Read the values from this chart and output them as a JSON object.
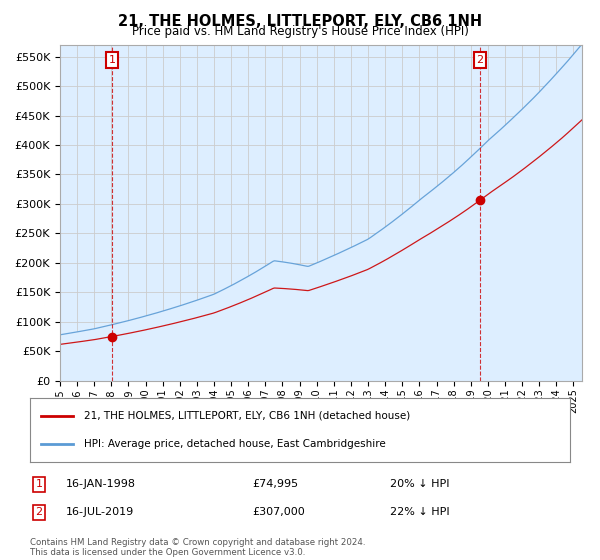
{
  "title": "21, THE HOLMES, LITTLEPORT, ELY, CB6 1NH",
  "subtitle": "Price paid vs. HM Land Registry's House Price Index (HPI)",
  "xlim_start": 1995.0,
  "xlim_end": 2025.5,
  "ylim_min": 0,
  "ylim_max": 570000,
  "yticks": [
    0,
    50000,
    100000,
    150000,
    200000,
    250000,
    300000,
    350000,
    400000,
    450000,
    500000,
    550000
  ],
  "ytick_labels": [
    "£0",
    "£50K",
    "£100K",
    "£150K",
    "£200K",
    "£250K",
    "£300K",
    "£350K",
    "£400K",
    "£450K",
    "£500K",
    "£550K"
  ],
  "hpi_color": "#5b9bd5",
  "hpi_fill_color": "#ddeeff",
  "price_color": "#cc0000",
  "marker_color": "#cc0000",
  "point1_x": 1998.04,
  "point1_y": 74995,
  "point1_label": "1",
  "point2_x": 2019.54,
  "point2_y": 307000,
  "point2_label": "2",
  "legend_line1": "21, THE HOLMES, LITTLEPORT, ELY, CB6 1NH (detached house)",
  "legend_line2": "HPI: Average price, detached house, East Cambridgeshire",
  "note1_label": "1",
  "note1_date": "16-JAN-1998",
  "note1_price": "£74,995",
  "note1_hpi": "20% ↓ HPI",
  "note2_label": "2",
  "note2_date": "16-JUL-2019",
  "note2_price": "£307,000",
  "note2_hpi": "22% ↓ HPI",
  "footer": "Contains HM Land Registry data © Crown copyright and database right 2024.\nThis data is licensed under the Open Government Licence v3.0.",
  "background_color": "#ffffff",
  "grid_color": "#cccccc"
}
